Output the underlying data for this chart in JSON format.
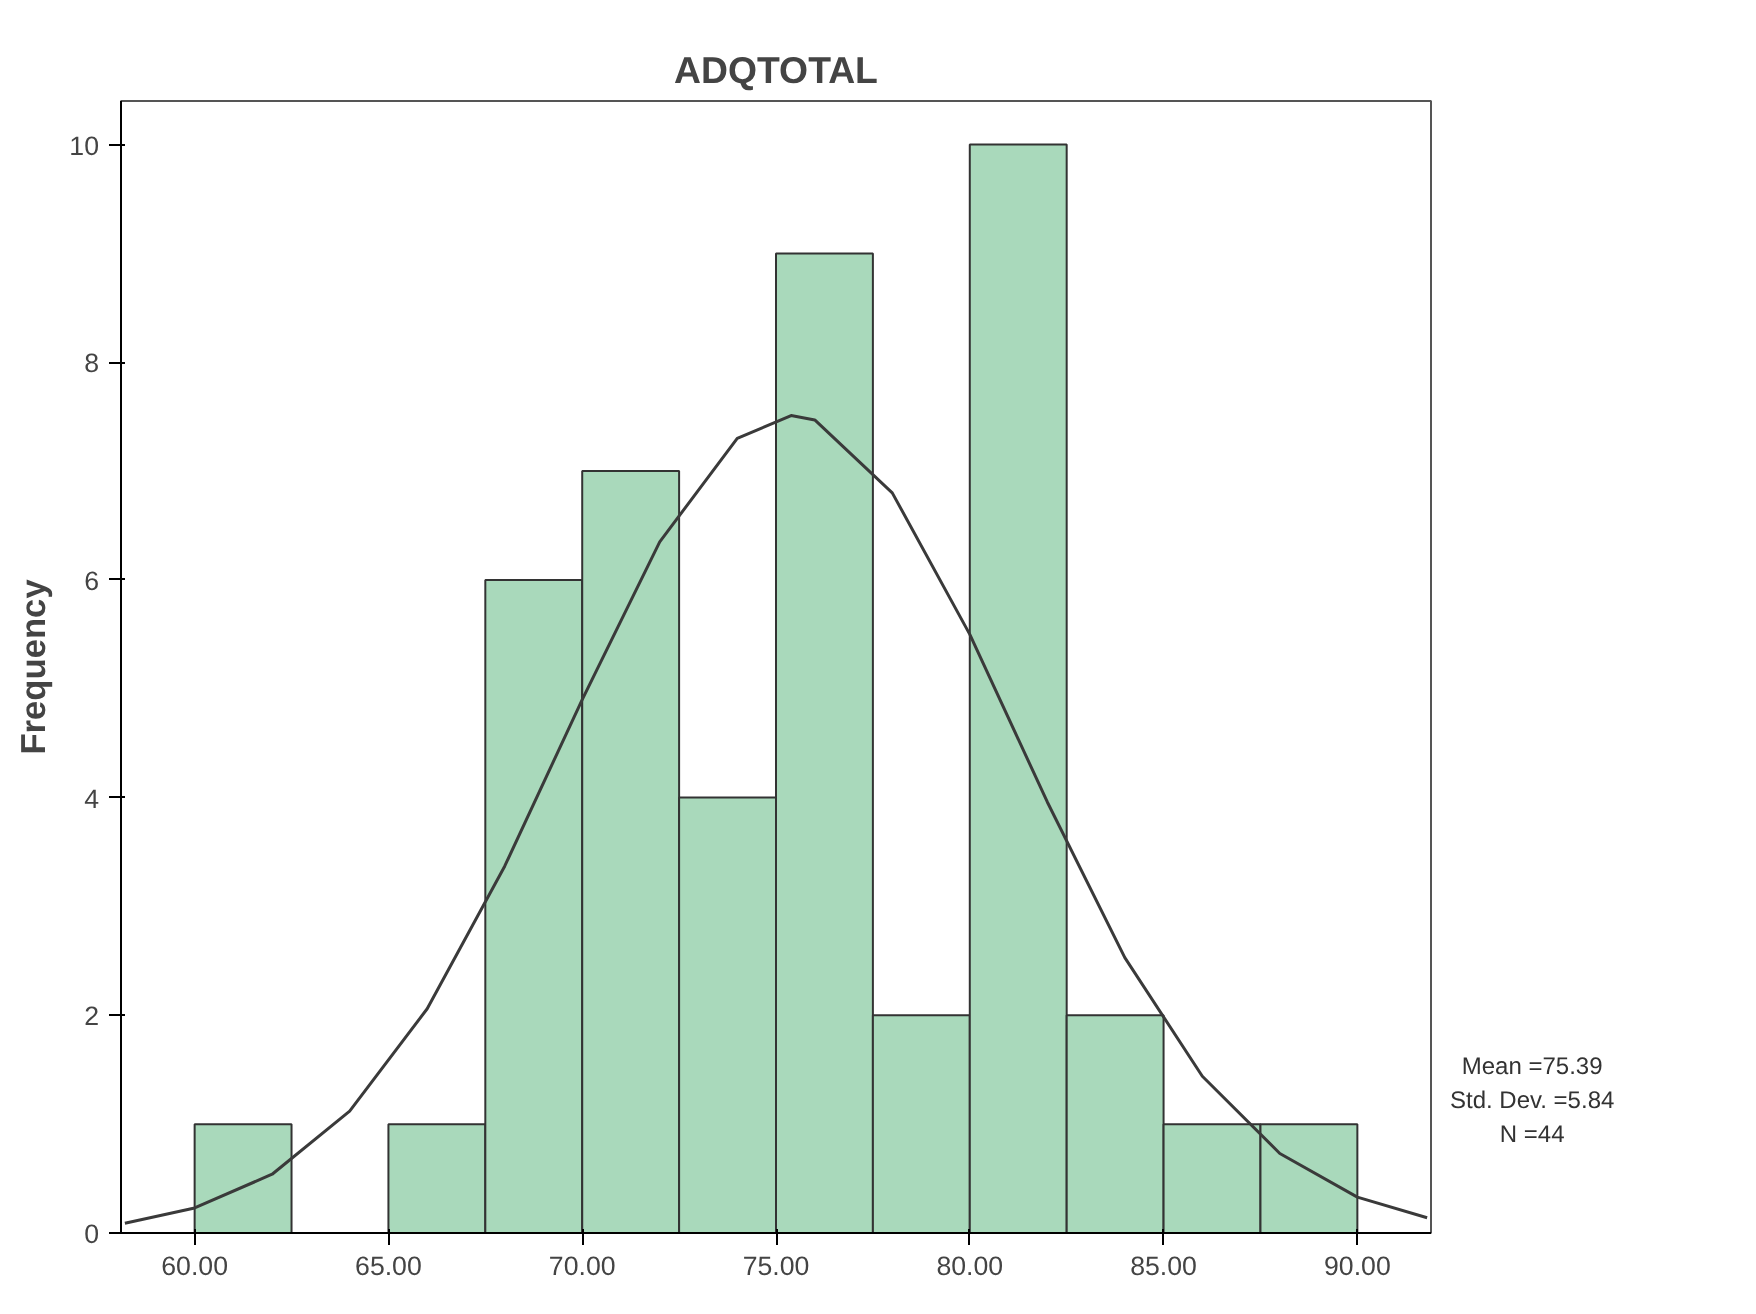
{
  "chart_data": {
    "type": "histogram",
    "title": "ADQTOTAL",
    "ylabel": "Frequency",
    "color": "#a9d9bb",
    "bins": [
      60,
      62.5,
      65,
      67.5,
      70,
      72.5,
      75,
      77.5,
      80,
      82.5,
      85,
      87.5,
      90
    ],
    "values": [
      1,
      0,
      1,
      6,
      7,
      4,
      9,
      2,
      10,
      2,
      1,
      1
    ],
    "series": [
      {
        "type": "line",
        "color": "#3a3a3a",
        "x": [
          58.2,
          60,
          62,
          64,
          66,
          68,
          70,
          72,
          74,
          75.39,
          76,
          78,
          80,
          82,
          84,
          86,
          88,
          90,
          91.8
        ],
        "values": [
          0.09,
          0.23,
          0.54,
          1.12,
          2.06,
          3.37,
          4.9,
          6.35,
          7.3,
          7.51,
          7.47,
          6.8,
          5.5,
          3.96,
          2.53,
          1.44,
          0.73,
          0.33,
          0.14
        ]
      }
    ],
    "xlim": [
      58.1,
      91.9
    ],
    "xticks": [
      {
        "value": 60,
        "label": "60.00"
      },
      {
        "value": 65,
        "label": "65.00"
      },
      {
        "value": 70,
        "label": "70.00"
      },
      {
        "value": 75,
        "label": "75.00"
      },
      {
        "value": 80,
        "label": "80.00"
      },
      {
        "value": 85,
        "label": "85.00"
      },
      {
        "value": 90,
        "label": "90.00"
      }
    ],
    "ylim": [
      0,
      10.4
    ],
    "yticks": [
      0,
      2,
      4,
      6,
      8,
      10
    ],
    "annotations": [
      "Mean =75.39",
      "Std. Dev. =5.84",
      "N =44"
    ]
  }
}
